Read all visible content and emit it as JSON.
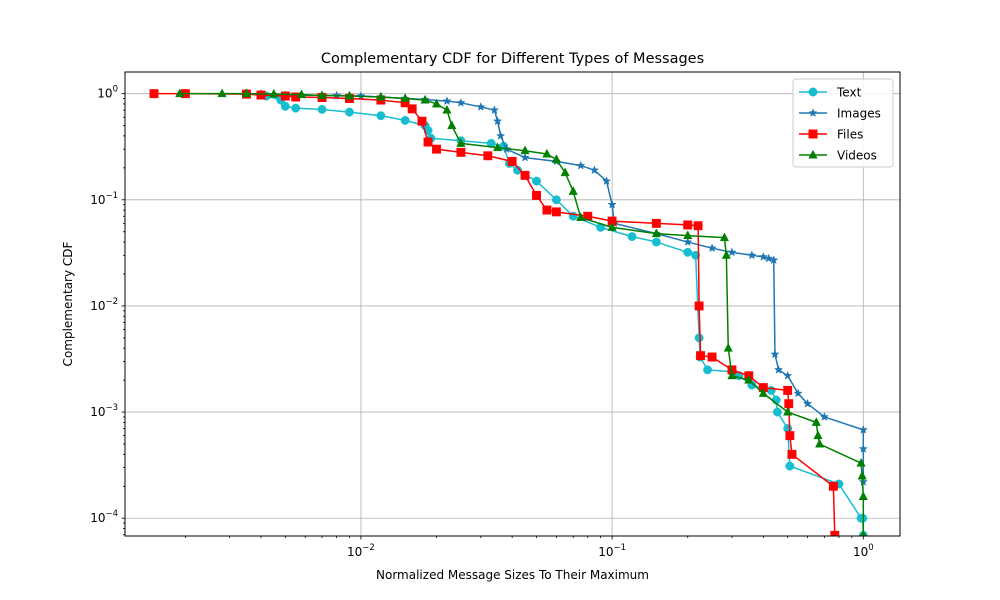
{
  "chart_data": {
    "type": "line",
    "title": "Complementary CDF for Different Types of Messages",
    "xlabel": "Normalized Message Sizes To Their Maximum",
    "ylabel": "Complementary CDF",
    "xscale": "log",
    "yscale": "log",
    "xlim": [
      0.00115,
      1.4
    ],
    "ylim": [
      6.8e-05,
      1.6
    ],
    "grid": true,
    "legend_position": "top-right",
    "x_ticks": [
      {
        "value": 0.01,
        "base": "10",
        "exp": "−2"
      },
      {
        "value": 0.1,
        "base": "10",
        "exp": "−1"
      },
      {
        "value": 1,
        "base": "10",
        "exp": "0"
      }
    ],
    "y_ticks": [
      {
        "value": 0.0001,
        "base": "10",
        "exp": "−4"
      },
      {
        "value": 0.001,
        "base": "10",
        "exp": "−3"
      },
      {
        "value": 0.01,
        "base": "10",
        "exp": "−2"
      },
      {
        "value": 0.1,
        "base": "10",
        "exp": "−1"
      },
      {
        "value": 1,
        "base": "10",
        "exp": "0"
      }
    ],
    "series": [
      {
        "name": "Text",
        "color": "#17becf",
        "marker": "circle",
        "line_width": 1.5,
        "x": [
          0.0035,
          0.0042,
          0.0048,
          0.005,
          0.0055,
          0.007,
          0.009,
          0.012,
          0.015,
          0.018,
          0.0185,
          0.019,
          0.025,
          0.033,
          0.037,
          0.039,
          0.042,
          0.05,
          0.06,
          0.07,
          0.09,
          0.12,
          0.15,
          0.2,
          0.215,
          0.222,
          0.224,
          0.24,
          0.3,
          0.32,
          0.36,
          0.43,
          0.45,
          0.455,
          0.5,
          0.51,
          0.8,
          0.98,
          0.995,
          1.0
        ],
        "y": [
          1.0,
          0.95,
          0.87,
          0.76,
          0.73,
          0.71,
          0.67,
          0.62,
          0.56,
          0.5,
          0.45,
          0.38,
          0.36,
          0.34,
          0.32,
          0.22,
          0.19,
          0.15,
          0.1,
          0.07,
          0.055,
          0.045,
          0.04,
          0.032,
          0.03,
          0.005,
          0.0033,
          0.0025,
          0.0024,
          0.0022,
          0.0018,
          0.0016,
          0.0013,
          0.001,
          0.0007,
          0.00031,
          0.00021,
          0.0001,
          0.0001,
          6.9e-05
        ]
      },
      {
        "name": "Images",
        "color": "#1f77b4",
        "marker": "star",
        "line_width": 1.5,
        "x": [
          0.004,
          0.0045,
          0.005,
          0.008,
          0.01,
          0.012,
          0.015,
          0.018,
          0.022,
          0.025,
          0.03,
          0.034,
          0.035,
          0.036,
          0.038,
          0.045,
          0.06,
          0.075,
          0.085,
          0.095,
          0.1,
          0.102,
          0.15,
          0.2,
          0.25,
          0.3,
          0.36,
          0.4,
          0.42,
          0.44,
          0.445,
          0.46,
          0.5,
          0.55,
          0.6,
          0.7,
          1.0,
          1.0,
          1.0
        ],
        "y": [
          1.0,
          0.98,
          0.97,
          0.96,
          0.95,
          0.93,
          0.9,
          0.88,
          0.85,
          0.82,
          0.75,
          0.7,
          0.55,
          0.4,
          0.3,
          0.25,
          0.23,
          0.21,
          0.19,
          0.15,
          0.09,
          0.06,
          0.048,
          0.04,
          0.035,
          0.032,
          0.03,
          0.029,
          0.028,
          0.027,
          0.0035,
          0.0025,
          0.0022,
          0.0015,
          0.0012,
          0.0009,
          0.00068,
          0.00045,
          0.00022
        ]
      },
      {
        "name": "Files",
        "color": "#ff0000",
        "marker": "square",
        "line_width": 1.5,
        "x": [
          0.0015,
          0.002,
          0.0035,
          0.004,
          0.005,
          0.0055,
          0.007,
          0.009,
          0.012,
          0.015,
          0.016,
          0.0175,
          0.0185,
          0.02,
          0.025,
          0.032,
          0.04,
          0.045,
          0.05,
          0.055,
          0.06,
          0.08,
          0.1,
          0.15,
          0.2,
          0.22,
          0.222,
          0.225,
          0.25,
          0.3,
          0.35,
          0.4,
          0.5,
          0.505,
          0.51,
          0.52,
          0.76,
          0.77
        ],
        "y": [
          1.0,
          1.0,
          0.99,
          0.97,
          0.95,
          0.93,
          0.92,
          0.9,
          0.87,
          0.82,
          0.72,
          0.55,
          0.35,
          0.3,
          0.28,
          0.26,
          0.23,
          0.17,
          0.11,
          0.08,
          0.077,
          0.07,
          0.063,
          0.06,
          0.058,
          0.057,
          0.01,
          0.0034,
          0.0033,
          0.0025,
          0.0022,
          0.0017,
          0.0016,
          0.0012,
          0.0006,
          0.0004,
          0.0002,
          6.9e-05
        ]
      },
      {
        "name": "Videos",
        "color": "#008000",
        "marker": "triangle",
        "line_width": 1.5,
        "x": [
          0.0019,
          0.0028,
          0.0035,
          0.0045,
          0.0058,
          0.007,
          0.009,
          0.012,
          0.015,
          0.018,
          0.02,
          0.022,
          0.023,
          0.025,
          0.035,
          0.045,
          0.055,
          0.06,
          0.065,
          0.07,
          0.075,
          0.1,
          0.15,
          0.2,
          0.28,
          0.285,
          0.29,
          0.3,
          0.35,
          0.4,
          0.5,
          0.65,
          0.66,
          0.67,
          0.98,
          0.99,
          1.0,
          1.0
        ],
        "y": [
          1.0,
          1.0,
          1.0,
          0.99,
          0.98,
          0.96,
          0.95,
          0.93,
          0.9,
          0.87,
          0.8,
          0.7,
          0.5,
          0.34,
          0.31,
          0.29,
          0.27,
          0.24,
          0.18,
          0.12,
          0.068,
          0.055,
          0.048,
          0.046,
          0.044,
          0.03,
          0.004,
          0.0022,
          0.002,
          0.0015,
          0.001,
          0.0008,
          0.0006,
          0.0005,
          0.00033,
          0.00025,
          0.00016,
          6.9e-05
        ]
      }
    ]
  }
}
